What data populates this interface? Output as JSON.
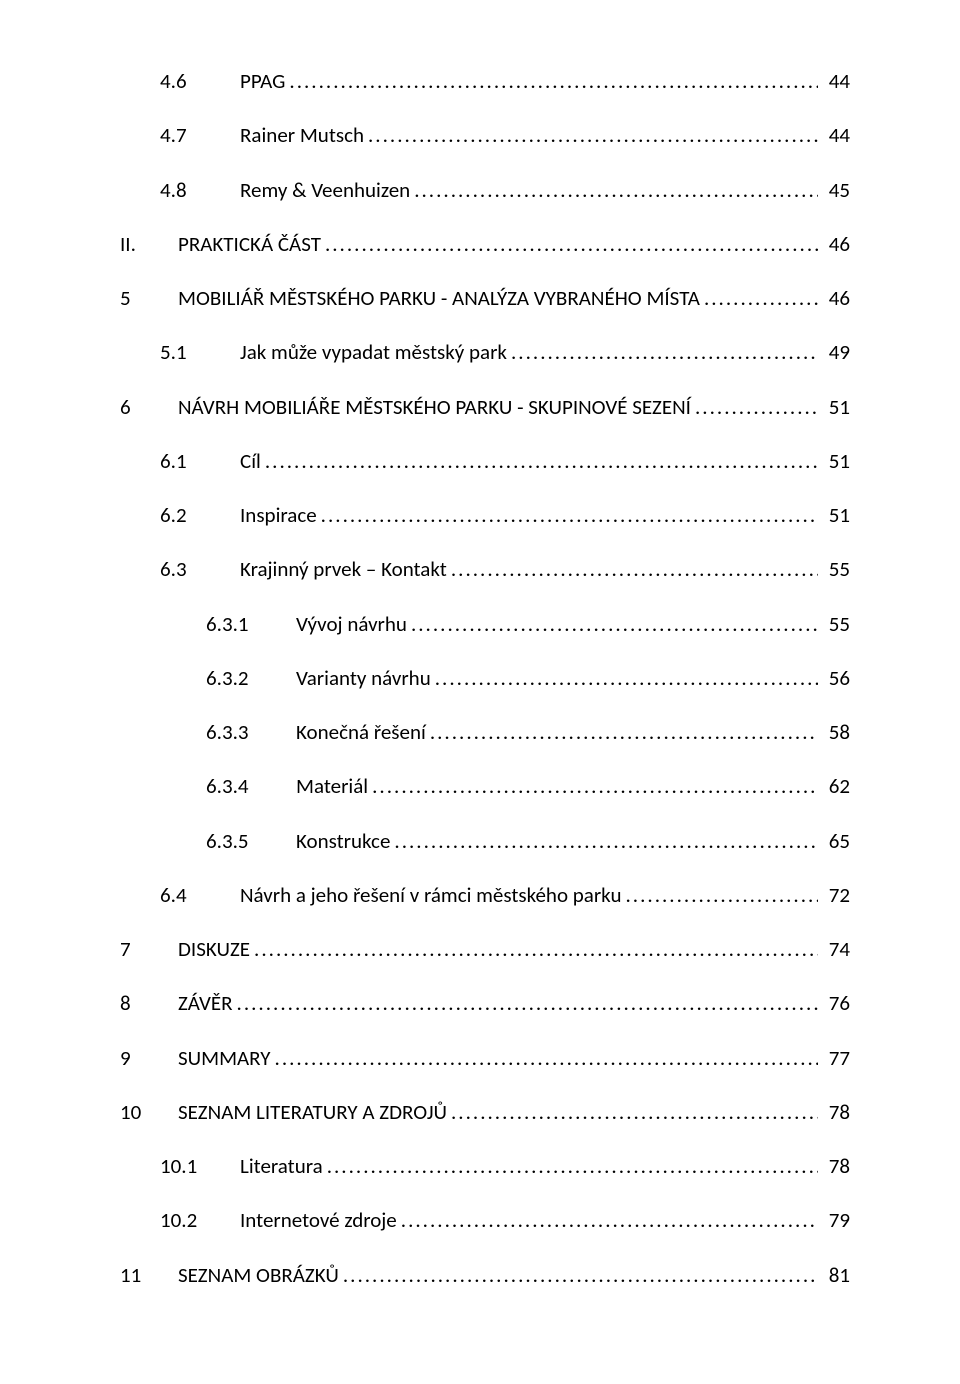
{
  "toc": [
    {
      "level": 2,
      "num": "4.6",
      "title": "PPAG",
      "page": "44"
    },
    {
      "level": 2,
      "num": "4.7",
      "title": "Rainer Mutsch",
      "page": "44"
    },
    {
      "level": 2,
      "num": "4.8",
      "title": "Remy & Veenhuizen",
      "page": "45"
    },
    {
      "level": 1,
      "num": "II.",
      "title": "PRAKTICKÁ ČÁST",
      "page": "46"
    },
    {
      "level": 1,
      "num": "5",
      "title": "MOBILIÁŘ MĚSTSKÉHO PARKU - ANALÝZA VYBRANÉHO MÍSTA",
      "page": "46"
    },
    {
      "level": 2,
      "num": "5.1",
      "title": "Jak může vypadat městský park",
      "page": "49"
    },
    {
      "level": 1,
      "num": "6",
      "title": "NÁVRH MOBILIÁŘE MĚSTSKÉHO PARKU - SKUPINOVÉ SEZENÍ",
      "page": "51"
    },
    {
      "level": 2,
      "num": "6.1",
      "title": "Cíl",
      "page": "51"
    },
    {
      "level": 2,
      "num": "6.2",
      "title": "Inspirace",
      "page": "51"
    },
    {
      "level": 2,
      "num": "6.3",
      "title": "Krajinný prvek – Kontakt",
      "page": "55"
    },
    {
      "level": 3,
      "num": "6.3.1",
      "title": "Vývoj návrhu",
      "page": "55"
    },
    {
      "level": 3,
      "num": "6.3.2",
      "title": "Varianty návrhu",
      "page": "56"
    },
    {
      "level": 3,
      "num": "6.3.3",
      "title": "Konečná řešení",
      "page": "58"
    },
    {
      "level": 3,
      "num": "6.3.4",
      "title": "Materiál",
      "page": "62"
    },
    {
      "level": 3,
      "num": "6.3.5",
      "title": "Konstrukce",
      "page": "65"
    },
    {
      "level": 2,
      "num": "6.4",
      "title": "Návrh a jeho řešení v rámci městského parku",
      "page": "72"
    },
    {
      "level": 1,
      "num": "7",
      "title": "DISKUZE",
      "page": "74"
    },
    {
      "level": 1,
      "num": "8",
      "title": "ZÁVĚR",
      "page": "76"
    },
    {
      "level": 1,
      "num": "9",
      "title": "SUMMARY",
      "page": "77"
    },
    {
      "level": 1,
      "num": "10",
      "title": "SEZNAM LITERATURY A ZDROJŮ",
      "page": "78"
    },
    {
      "level": 2,
      "num": "10.1",
      "title": "Literatura",
      "page": "78"
    },
    {
      "level": 2,
      "num": "10.2",
      "title": "Internetové zdroje",
      "page": "79"
    },
    {
      "level": 1,
      "num": "11",
      "title": "SEZNAM OBRÁZKŮ",
      "page": "81"
    }
  ],
  "style": {
    "font_family": "Calibri",
    "font_size_pt": 12,
    "text_color": "#000000",
    "background_color": "#ffffff",
    "leader_char": "."
  }
}
